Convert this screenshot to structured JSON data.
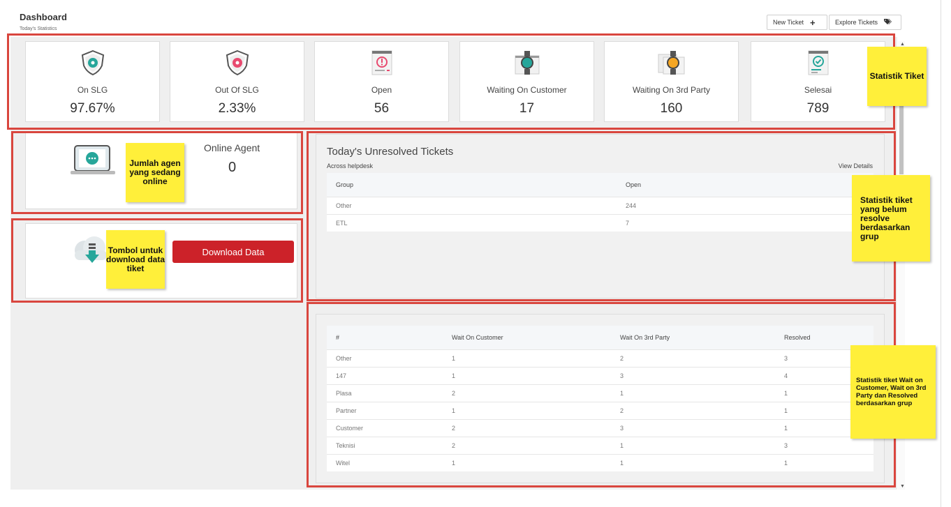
{
  "header": {
    "title": "Dashboard",
    "subtitle": "Today's Statistics",
    "new_ticket_label": "New Ticket",
    "new_ticket_icon": "plus-icon",
    "explore_label": "Explore Tickets",
    "explore_icon": "tags-icon"
  },
  "stats": [
    {
      "label": "On SLG",
      "value": "97.67%",
      "icon": "shield-gear-icon",
      "color": "#26a69a"
    },
    {
      "label": "Out Of SLG",
      "value": "2.33%",
      "icon": "shield-gear-icon",
      "color": "#e84a6f"
    },
    {
      "label": "Open",
      "value": "56",
      "icon": "document-alert-icon",
      "color": "#e84a6f"
    },
    {
      "label": "Waiting On Customer",
      "value": "17",
      "icon": "document-watch-icon",
      "color": "#26a69a"
    },
    {
      "label": "Waiting On 3rd Party",
      "value": "160",
      "icon": "document-watch-icon",
      "color": "#f5a623"
    },
    {
      "label": "Selesai",
      "value": "789",
      "icon": "document-check-icon",
      "color": "#26a69a"
    }
  ],
  "agent": {
    "label": "Online Agent",
    "value": "0"
  },
  "download": {
    "button_label": "Download Data"
  },
  "unresolved": {
    "title": "Today's Unresolved Tickets",
    "subtitle": "Across helpdesk",
    "link": "View Details",
    "columns": [
      "Group",
      "Open"
    ],
    "rows": [
      [
        "Other",
        "244"
      ],
      [
        "ETL",
        "7"
      ]
    ]
  },
  "group_table": {
    "columns": [
      "#",
      "Wait On Customer",
      "Wait On 3rd Party",
      "Resolved"
    ],
    "rows": [
      [
        "Other",
        "1",
        "2",
        "3"
      ],
      [
        "147",
        "1",
        "3",
        "4"
      ],
      [
        "Plasa",
        "2",
        "1",
        "1"
      ],
      [
        "Partner",
        "1",
        "2",
        "1"
      ],
      [
        "Customer",
        "2",
        "3",
        "1"
      ],
      [
        "Teknisi",
        "2",
        "1",
        "3"
      ],
      [
        "Witel",
        "1",
        "1",
        "1"
      ]
    ]
  },
  "annotations": {
    "stats": "Statistik Tiket",
    "agent": "Jumlah agen yang sedang online",
    "download": "Tombol untuk download data tiket",
    "unresolved": "Statistik tiket yang belum resolve berdasarkan grup",
    "groups": "Statistik tiket Wait on Customer, Wait on 3rd Party dan Resolved berdasarkan grup"
  },
  "colors": {
    "accent_red": "#cc2229",
    "annotation_border": "#d9463e",
    "note_yellow": "#ffef3a"
  }
}
